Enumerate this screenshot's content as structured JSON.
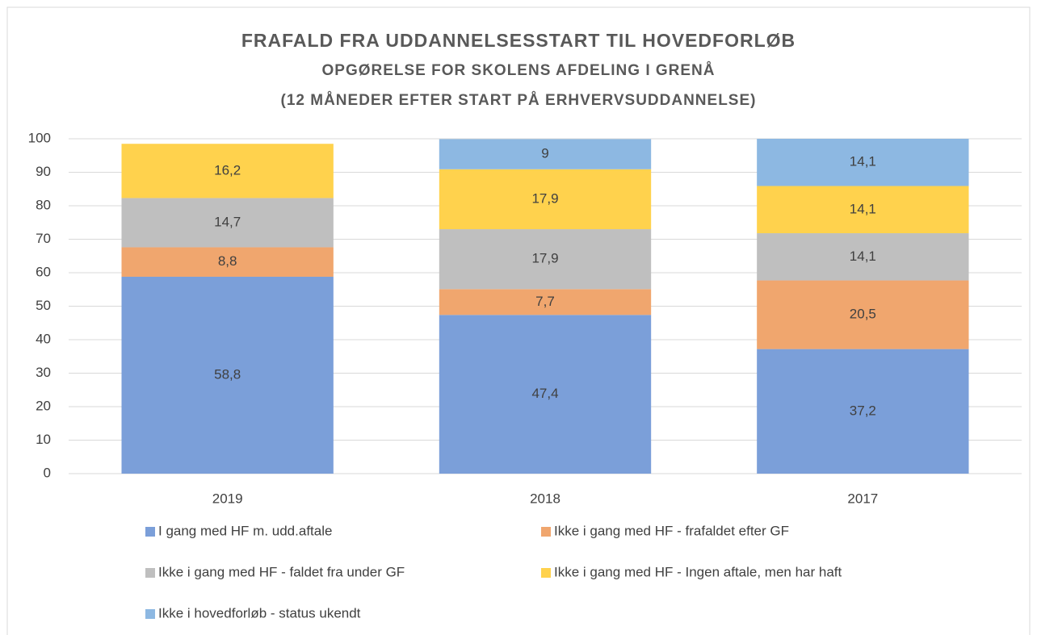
{
  "chart_data": {
    "type": "stacked_bar",
    "title": "FRAFALD FRA UDDANNELSESSTART TIL HOVEDFORLØB",
    "subtitle": [
      "OPGØRELSE FOR SKOLENS AFDELING I GRENÅ",
      "(12 MÅNEDER EFTER START PÅ ERHVERVSUDDANNELSE)"
    ],
    "categories": [
      "2019",
      "2018",
      "2017"
    ],
    "series": [
      {
        "name": "I gang med HF m. udd.aftale",
        "color": "#7b9fd9",
        "values": [
          58.8,
          47.4,
          37.2
        ],
        "value_labels": [
          "58,8",
          "47,4",
          "37,2"
        ]
      },
      {
        "name": "Ikke i gang med HF - frafaldet efter GF",
        "color": "#f0a66e",
        "values": [
          8.8,
          7.7,
          20.5
        ],
        "value_labels": [
          "8,8",
          "7,7",
          "20,5"
        ]
      },
      {
        "name": "Ikke i gang med HF - faldet fra under GF",
        "color": "#bfbfbf",
        "values": [
          14.7,
          17.9,
          14.1
        ],
        "value_labels": [
          "14,7",
          "17,9",
          "14,1"
        ]
      },
      {
        "name": "Ikke i gang med HF - Ingen aftale, men har haft",
        "color": "#ffd24d",
        "values": [
          16.2,
          17.9,
          14.1
        ],
        "value_labels": [
          "16,2",
          "17,9",
          "14,1"
        ]
      },
      {
        "name": "Ikke i hovedforløb - status ukendt",
        "color": "#8db8e2",
        "values": [
          null,
          9,
          14.1
        ],
        "value_labels": [
          null,
          "9",
          "14,1"
        ]
      }
    ],
    "ylim": [
      0,
      100
    ],
    "yticks": [
      0,
      10,
      20,
      30,
      40,
      50,
      60,
      70,
      80,
      90,
      100
    ],
    "grid": true,
    "legend": "bottom"
  }
}
